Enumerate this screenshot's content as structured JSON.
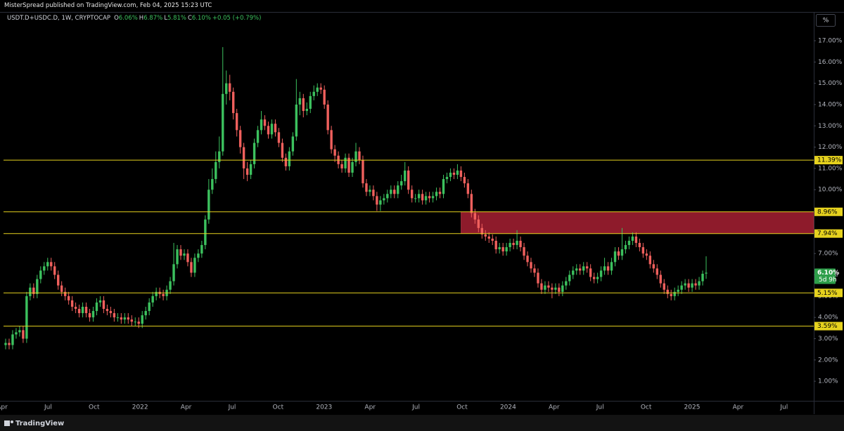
{
  "header": {
    "publisher": "MisterSpread published on TradingView.com, Feb 04, 2025 15:23 UTC",
    "footer": "TradingView",
    "scale_button": "%"
  },
  "chart_data": {
    "type": "candlestick",
    "symbol": "USDT.D+USDC.D, 1W, CRYPTOCAP",
    "ohlc_legend": [
      {
        "key": "O",
        "value": "6.06%"
      },
      {
        "key": "H",
        "value": "6.87%"
      },
      {
        "key": "L",
        "value": "5.81%"
      },
      {
        "key": "C",
        "value": "6.10%"
      }
    ],
    "change": "+0.05 (+0.79%)",
    "up_color": "#3cc15e",
    "down_color": "#f0605d",
    "x": [
      "2021-04",
      "2021-04",
      "2021-04",
      "2021-04",
      "2021-05",
      "2021-05",
      "2021-05",
      "2021-05",
      "2021-05",
      "2021-06",
      "2021-06",
      "2021-06",
      "2021-06",
      "2021-07",
      "2021-07",
      "2021-07",
      "2021-07",
      "2021-08",
      "2021-08",
      "2021-08",
      "2021-08",
      "2021-08",
      "2021-09",
      "2021-09",
      "2021-09",
      "2021-09",
      "2021-10",
      "2021-10",
      "2021-10",
      "2021-10",
      "2021-11",
      "2021-11",
      "2021-11",
      "2021-11",
      "2021-11",
      "2021-12",
      "2021-12",
      "2021-12",
      "2021-12",
      "2022-01",
      "2022-01",
      "2022-01",
      "2022-01",
      "2022-01",
      "2022-02",
      "2022-02",
      "2022-02",
      "2022-02",
      "2022-03",
      "2022-03",
      "2022-03",
      "2022-03",
      "2022-04",
      "2022-04",
      "2022-04",
      "2022-04",
      "2022-05",
      "2022-05",
      "2022-05",
      "2022-05",
      "2022-05",
      "2022-06",
      "2022-06",
      "2022-06",
      "2022-06",
      "2022-07",
      "2022-07",
      "2022-07",
      "2022-07",
      "2022-08",
      "2022-08",
      "2022-08",
      "2022-08",
      "2022-08",
      "2022-09",
      "2022-09",
      "2022-09",
      "2022-09",
      "2022-10",
      "2022-10",
      "2022-10",
      "2022-10",
      "2022-10",
      "2022-11",
      "2022-11",
      "2022-11",
      "2022-11",
      "2022-12",
      "2022-12",
      "2022-12",
      "2022-12",
      "2023-01",
      "2023-01",
      "2023-01",
      "2023-01",
      "2023-01",
      "2023-02",
      "2023-02",
      "2023-02",
      "2023-02",
      "2023-03",
      "2023-03",
      "2023-03",
      "2023-03",
      "2023-04",
      "2023-04",
      "2023-04",
      "2023-04",
      "2023-05",
      "2023-05",
      "2023-05",
      "2023-05",
      "2023-05",
      "2023-06",
      "2023-06",
      "2023-06",
      "2023-06",
      "2023-07",
      "2023-07",
      "2023-07",
      "2023-07",
      "2023-07",
      "2023-08",
      "2023-08",
      "2023-08",
      "2023-08",
      "2023-09",
      "2023-09",
      "2023-09",
      "2023-09",
      "2023-10",
      "2023-10",
      "2023-10",
      "2023-10",
      "2023-10",
      "2023-11",
      "2023-11",
      "2023-11",
      "2023-11",
      "2023-12",
      "2023-12",
      "2023-12",
      "2023-12",
      "2024-01",
      "2024-01",
      "2024-01",
      "2024-01",
      "2024-01",
      "2024-02",
      "2024-02",
      "2024-02",
      "2024-02",
      "2024-03",
      "2024-03",
      "2024-03",
      "2024-03",
      "2024-04",
      "2024-04",
      "2024-04",
      "2024-04",
      "2024-04",
      "2024-05",
      "2024-05",
      "2024-05",
      "2024-05",
      "2024-06",
      "2024-06",
      "2024-06",
      "2024-06",
      "2024-07",
      "2024-07",
      "2024-07",
      "2024-07",
      "2024-07",
      "2024-08",
      "2024-08",
      "2024-08",
      "2024-08",
      "2024-09",
      "2024-09",
      "2024-09",
      "2024-09",
      "2024-09",
      "2024-10",
      "2024-10",
      "2024-10",
      "2024-10",
      "2024-11",
      "2024-11",
      "2024-11",
      "2024-11",
      "2024-12",
      "2024-12",
      "2024-12",
      "2024-12",
      "2024-12",
      "2025-01",
      "2025-01",
      "2025-01",
      "2025-01",
      "2025-02"
    ],
    "open": [
      2.7,
      2.8,
      2.7,
      3.2,
      3.3,
      3.4,
      3.0,
      5.0,
      5.4,
      5.1,
      5.8,
      6.2,
      6.4,
      6.6,
      6.4,
      6.0,
      5.5,
      5.2,
      5.0,
      4.8,
      4.5,
      4.4,
      4.2,
      4.5,
      4.2,
      4.0,
      4.3,
      4.7,
      4.8,
      4.4,
      4.3,
      4.2,
      4.0,
      4.0,
      3.9,
      4.0,
      3.9,
      3.8,
      3.8,
      3.7,
      4.1,
      4.3,
      4.7,
      5.0,
      5.2,
      5.1,
      5.0,
      5.3,
      5.7,
      6.5,
      7.2,
      6.9,
      7.0,
      6.6,
      6.1,
      6.8,
      7.0,
      7.4,
      8.6,
      10.0,
      10.5,
      11.3,
      11.8,
      14.5,
      15.0,
      14.6,
      13.6,
      12.8,
      12.0,
      11.0,
      10.7,
      11.2,
      12.2,
      12.8,
      13.3,
      13.0,
      12.6,
      13.1,
      12.7,
      12.2,
      11.5,
      11.1,
      11.8,
      12.5,
      14.0,
      14.3,
      13.7,
      13.8,
      14.4,
      14.6,
      14.8,
      14.7,
      14.0,
      12.8,
      11.9,
      11.6,
      11.2,
      11.0,
      11.5,
      10.8,
      11.3,
      11.8,
      11.4,
      10.3,
      9.9,
      10.0,
      9.7,
      9.3,
      9.5,
      9.6,
      9.8,
      10.0,
      9.8,
      10.2,
      10.4,
      10.9,
      10.0,
      9.6,
      9.6,
      9.8,
      9.5,
      9.7,
      9.6,
      9.7,
      9.9,
      9.8,
      10.5,
      10.6,
      10.8,
      10.7,
      10.9,
      10.6,
      10.3,
      9.8,
      8.9,
      8.6,
      8.2,
      7.9,
      7.8,
      7.7,
      7.6,
      7.2,
      7.3,
      7.1,
      7.3,
      7.5,
      7.4,
      7.6,
      7.3,
      6.9,
      6.6,
      6.3,
      6.1,
      5.6,
      5.3,
      5.5,
      5.4,
      5.3,
      5.4,
      5.2,
      5.5,
      5.7,
      6.0,
      6.2,
      6.3,
      6.2,
      6.4,
      6.3,
      5.9,
      5.8,
      5.9,
      6.2,
      6.4,
      6.2,
      6.6,
      7.1,
      6.9,
      7.2,
      7.4,
      7.6,
      7.8,
      7.5,
      7.3,
      7.0,
      6.9,
      6.5,
      6.3,
      6.0,
      5.6,
      5.3,
      5.1,
      5.0,
      5.2,
      5.3,
      5.5,
      5.6,
      5.4,
      5.6,
      5.5,
      5.7,
      6.06
    ],
    "high": [
      3.0,
      3.0,
      3.4,
      3.5,
      3.6,
      3.6,
      5.2,
      5.6,
      5.6,
      6.0,
      6.4,
      6.6,
      6.8,
      6.8,
      6.6,
      6.2,
      5.7,
      5.4,
      5.2,
      5.0,
      4.7,
      4.6,
      4.7,
      4.7,
      4.4,
      4.5,
      4.9,
      5.0,
      5.0,
      4.6,
      4.5,
      4.4,
      4.2,
      4.2,
      4.2,
      4.2,
      4.1,
      4.0,
      4.0,
      4.3,
      4.5,
      4.9,
      5.2,
      5.4,
      5.4,
      5.3,
      5.5,
      5.9,
      7.5,
      7.4,
      7.4,
      7.2,
      7.2,
      6.8,
      7.0,
      7.2,
      7.6,
      8.8,
      10.5,
      11.0,
      11.8,
      12.5,
      16.7,
      15.6,
      15.4,
      14.8,
      13.8,
      13.0,
      12.2,
      11.3,
      11.4,
      12.4,
      13.0,
      13.7,
      13.5,
      13.2,
      13.3,
      13.3,
      12.9,
      12.4,
      11.7,
      12.0,
      12.7,
      15.2,
      14.6,
      14.5,
      14.1,
      14.6,
      14.9,
      15.0,
      15.0,
      14.9,
      14.2,
      13.0,
      12.1,
      11.8,
      11.4,
      11.7,
      11.7,
      11.5,
      12.2,
      12.0,
      11.6,
      10.5,
      10.2,
      10.2,
      9.9,
      9.7,
      9.8,
      10.0,
      10.2,
      10.2,
      10.4,
      10.7,
      11.3,
      11.1,
      10.2,
      9.8,
      10.0,
      10.0,
      9.9,
      9.9,
      9.9,
      10.1,
      10.1,
      10.7,
      10.8,
      11.0,
      11.0,
      11.2,
      11.1,
      10.8,
      10.5,
      10.0,
      9.1,
      8.8,
      8.4,
      8.1,
      8.0,
      7.9,
      7.8,
      7.5,
      7.5,
      7.5,
      7.7,
      7.7,
      8.1,
      7.8,
      7.5,
      7.1,
      6.8,
      6.5,
      6.3,
      5.8,
      5.7,
      5.7,
      5.6,
      5.6,
      5.6,
      5.7,
      5.9,
      6.2,
      6.4,
      6.5,
      6.5,
      6.6,
      6.6,
      6.5,
      6.1,
      6.1,
      6.4,
      6.8,
      6.6,
      6.8,
      7.3,
      7.3,
      8.2,
      7.6,
      7.8,
      8.0,
      8.0,
      7.7,
      7.5,
      7.2,
      7.1,
      6.7,
      6.5,
      6.2,
      5.8,
      5.5,
      5.3,
      5.4,
      5.5,
      5.7,
      5.8,
      5.8,
      5.8,
      5.8,
      5.9,
      6.2,
      6.87
    ],
    "low": [
      2.5,
      2.5,
      2.5,
      3.0,
      3.1,
      2.8,
      2.8,
      4.8,
      4.9,
      4.9,
      5.6,
      6.0,
      6.2,
      6.2,
      5.8,
      5.3,
      5.0,
      4.8,
      4.6,
      4.3,
      4.2,
      4.0,
      4.0,
      4.0,
      3.8,
      3.8,
      4.1,
      4.5,
      4.2,
      4.1,
      4.0,
      3.8,
      3.8,
      3.7,
      3.7,
      3.7,
      3.6,
      3.6,
      3.5,
      3.5,
      3.9,
      4.1,
      4.5,
      4.8,
      4.9,
      4.8,
      4.8,
      5.1,
      5.5,
      6.3,
      6.7,
      6.7,
      6.4,
      5.9,
      5.9,
      6.6,
      6.8,
      7.2,
      8.4,
      9.8,
      10.3,
      11.0,
      11.6,
      14.0,
      14.2,
      13.3,
      12.5,
      11.7,
      10.5,
      10.4,
      10.5,
      11.0,
      12.0,
      12.6,
      12.8,
      12.4,
      12.4,
      12.5,
      12.0,
      11.3,
      10.9,
      10.9,
      11.6,
      12.3,
      13.5,
      13.4,
      13.5,
      13.6,
      14.2,
      14.4,
      14.5,
      13.8,
      12.6,
      11.7,
      11.3,
      11.0,
      10.8,
      10.8,
      10.6,
      10.6,
      11.1,
      11.2,
      10.1,
      9.7,
      9.7,
      9.5,
      9.0,
      9.0,
      9.3,
      9.4,
      9.6,
      9.6,
      9.6,
      10.0,
      10.2,
      9.8,
      9.4,
      9.4,
      9.4,
      9.3,
      9.3,
      9.4,
      9.4,
      9.5,
      9.6,
      9.6,
      10.3,
      10.4,
      10.5,
      10.5,
      10.4,
      10.1,
      9.6,
      8.7,
      8.4,
      8.0,
      7.7,
      7.6,
      7.5,
      7.4,
      7.0,
      7.0,
      6.9,
      6.9,
      7.1,
      7.2,
      7.2,
      7.1,
      6.7,
      6.4,
      6.1,
      5.9,
      5.4,
      5.1,
      5.1,
      5.2,
      4.9,
      5.1,
      5.0,
      5.0,
      5.3,
      5.5,
      5.8,
      6.0,
      6.0,
      6.0,
      6.1,
      5.7,
      5.6,
      5.6,
      5.7,
      6.0,
      6.0,
      6.0,
      6.4,
      6.7,
      6.7,
      7.0,
      7.2,
      7.4,
      7.3,
      7.1,
      6.8,
      6.7,
      6.3,
      6.1,
      5.8,
      5.4,
      5.1,
      4.9,
      4.8,
      4.8,
      5.0,
      5.1,
      5.3,
      5.2,
      5.2,
      5.3,
      5.3,
      5.5,
      5.81
    ],
    "close": [
      2.8,
      2.7,
      3.2,
      3.3,
      3.4,
      3.0,
      5.0,
      5.4,
      5.1,
      5.8,
      6.2,
      6.4,
      6.6,
      6.4,
      6.0,
      5.5,
      5.2,
      5.0,
      4.8,
      4.5,
      4.4,
      4.2,
      4.5,
      4.2,
      4.0,
      4.3,
      4.7,
      4.8,
      4.4,
      4.3,
      4.2,
      4.0,
      4.0,
      3.9,
      4.0,
      3.9,
      3.8,
      3.8,
      3.7,
      4.1,
      4.3,
      4.7,
      5.0,
      5.2,
      5.1,
      5.0,
      5.3,
      5.7,
      6.5,
      7.2,
      6.9,
      7.0,
      6.6,
      6.1,
      6.8,
      7.0,
      7.4,
      8.6,
      10.0,
      10.5,
      11.3,
      11.8,
      14.5,
      15.0,
      14.6,
      13.6,
      12.8,
      12.0,
      11.0,
      10.7,
      11.2,
      12.2,
      12.8,
      13.3,
      13.0,
      12.6,
      13.1,
      12.7,
      12.2,
      11.5,
      11.1,
      11.8,
      12.5,
      14.0,
      14.3,
      13.7,
      13.8,
      14.4,
      14.6,
      14.8,
      14.7,
      14.0,
      12.8,
      11.9,
      11.6,
      11.2,
      11.0,
      11.5,
      10.8,
      11.3,
      11.8,
      11.4,
      10.3,
      9.9,
      10.0,
      9.7,
      9.3,
      9.5,
      9.6,
      9.8,
      10.0,
      9.8,
      10.2,
      10.4,
      10.9,
      10.0,
      9.6,
      9.6,
      9.8,
      9.5,
      9.7,
      9.6,
      9.7,
      9.9,
      9.8,
      10.5,
      10.6,
      10.8,
      10.7,
      10.9,
      10.6,
      10.3,
      9.8,
      8.9,
      8.6,
      8.2,
      7.9,
      7.8,
      7.7,
      7.6,
      7.2,
      7.3,
      7.1,
      7.3,
      7.5,
      7.4,
      7.6,
      7.3,
      6.9,
      6.6,
      6.3,
      6.1,
      5.6,
      5.3,
      5.5,
      5.4,
      5.3,
      5.4,
      5.2,
      5.5,
      5.7,
      6.0,
      6.2,
      6.3,
      6.2,
      6.4,
      6.3,
      5.9,
      5.8,
      5.9,
      6.2,
      6.4,
      6.2,
      6.6,
      7.1,
      6.9,
      7.2,
      7.4,
      7.6,
      7.8,
      7.5,
      7.3,
      7.0,
      6.9,
      6.5,
      6.3,
      6.0,
      5.6,
      5.3,
      5.1,
      5.0,
      5.2,
      5.3,
      5.5,
      5.6,
      5.4,
      5.6,
      5.5,
      5.7,
      6.05,
      6.1
    ],
    "ylim": [
      0.08,
      18.32
    ],
    "yticks": [
      {
        "value": 1,
        "label": "1.00%"
      },
      {
        "value": 2,
        "label": "2.00%"
      },
      {
        "value": 3,
        "label": "3.00%"
      },
      {
        "value": 4,
        "label": "4.00%"
      },
      {
        "value": 5,
        "label": "5.00%"
      },
      {
        "value": 6,
        "label": "6.00%"
      },
      {
        "value": 7,
        "label": "7.00%"
      },
      {
        "value": 8,
        "label": "8.00%"
      },
      {
        "value": 9,
        "label": "9.00%"
      },
      {
        "value": 10,
        "label": "10.00%"
      },
      {
        "value": 11,
        "label": "11.00%"
      },
      {
        "value": 12,
        "label": "12.00%"
      },
      {
        "value": 13,
        "label": "13.00%"
      },
      {
        "value": 14,
        "label": "14.00%"
      },
      {
        "value": 15,
        "label": "15.00%"
      },
      {
        "value": 16,
        "label": "16.00%"
      },
      {
        "value": 17,
        "label": "17.00%"
      }
    ],
    "xticks": [
      {
        "value": "2021-04",
        "label": "Apr"
      },
      {
        "value": "2021-07",
        "label": "Jul"
      },
      {
        "value": "2021-10",
        "label": "Oct"
      },
      {
        "value": "2022-01",
        "label": "2022"
      },
      {
        "value": "2022-04",
        "label": "Apr"
      },
      {
        "value": "2022-07",
        "label": "Jul"
      },
      {
        "value": "2022-10",
        "label": "Oct"
      },
      {
        "value": "2023-01",
        "label": "2023"
      },
      {
        "value": "2023-04",
        "label": "Apr"
      },
      {
        "value": "2023-07",
        "label": "Jul"
      },
      {
        "value": "2023-10",
        "label": "Oct"
      },
      {
        "value": "2024-01",
        "label": "2024"
      },
      {
        "value": "2024-04",
        "label": "Apr"
      },
      {
        "value": "2024-07",
        "label": "Jul"
      },
      {
        "value": "2024-10",
        "label": "Oct"
      },
      {
        "value": "2025-01",
        "label": "2025"
      },
      {
        "value": "2025-04",
        "label": "Apr"
      },
      {
        "value": "2025-07",
        "label": "Jul"
      }
    ],
    "levels": {
      "values": [
        11.39,
        8.96,
        7.94,
        5.15,
        3.59
      ],
      "value_labels": [
        "11.39%",
        "8.96%",
        "7.94%",
        "5.15%",
        "3.59%"
      ],
      "color": "#e6d21e"
    },
    "zone": {
      "from": "2023-10",
      "color": "#8e1b2b"
    },
    "last_price_label": "6.10%",
    "countdown": "5d 9h"
  }
}
